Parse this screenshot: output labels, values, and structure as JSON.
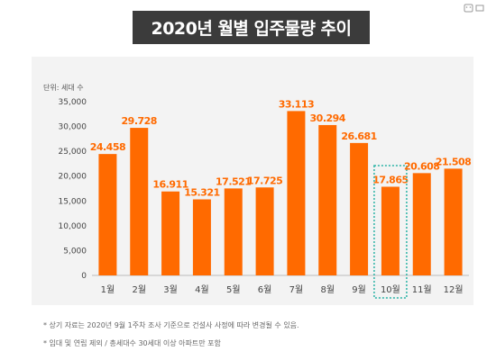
{
  "title": "2020년 월별 입주물량 추이",
  "unit": "단위: 세대 수",
  "corner_icon": "window-icon",
  "colors": {
    "bar": "#ff6a00",
    "label": "#ff6a00",
    "highlight_border": "#2bb3a6",
    "axis_text": "#444444"
  },
  "chart_data": {
    "type": "bar",
    "categories": [
      "1월",
      "2월",
      "3월",
      "4월",
      "5월",
      "6월",
      "7월",
      "8월",
      "9월",
      "10월",
      "11월",
      "12월"
    ],
    "values": [
      24458,
      29728,
      16911,
      15321,
      17521,
      17725,
      33113,
      30294,
      26681,
      17865,
      20608,
      21508
    ],
    "value_labels": [
      "24.458",
      "29.728",
      "16.911",
      "15.321",
      "17.521",
      "17.725",
      "33.113",
      "30.294",
      "26.681",
      "17.865",
      "20.608",
      "21.508"
    ],
    "ylim": [
      0,
      35000
    ],
    "yticks": [
      0,
      5000,
      10000,
      15000,
      20000,
      25000,
      30000,
      35000
    ],
    "ytick_labels": [
      "0",
      "5,000",
      "10,000",
      "15,000",
      "20,000",
      "25,000",
      "30,000",
      "35,000"
    ],
    "highlight_index": 9,
    "grid": false,
    "legend": "none"
  },
  "notes": [
    "* 상기 자료는 2020년 9월 1주차 조사 기준으로 건설사 사정에 따라 변경될 수 있음.",
    "* 임대 및 연립 제외 / 총세대수 30세대 이상 아파트만 포함"
  ]
}
